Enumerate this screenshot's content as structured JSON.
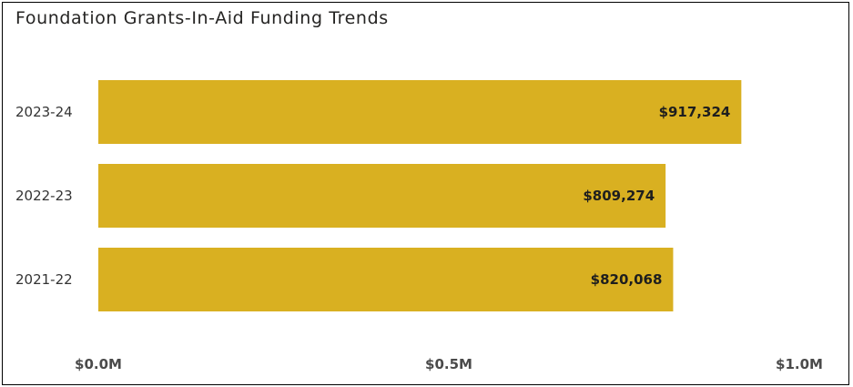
{
  "chart_data": {
    "type": "bar",
    "orientation": "horizontal",
    "title": "Foundation Grants-In-Aid Funding Trends",
    "xlabel": "",
    "ylabel": "",
    "categories": [
      "2023-24",
      "2022-23",
      "2021-22"
    ],
    "values": [
      917324,
      809274,
      820068
    ],
    "value_labels": [
      "$917,324",
      "$809,274",
      "$820,068"
    ],
    "xlim": [
      0,
      1000000
    ],
    "xticks": [
      0,
      500000,
      1000000
    ],
    "xtick_labels": [
      "$0.0M",
      "$0.5M",
      "$1.0M"
    ],
    "grid": false,
    "legend": "none",
    "bar_color": "#D9B021"
  }
}
